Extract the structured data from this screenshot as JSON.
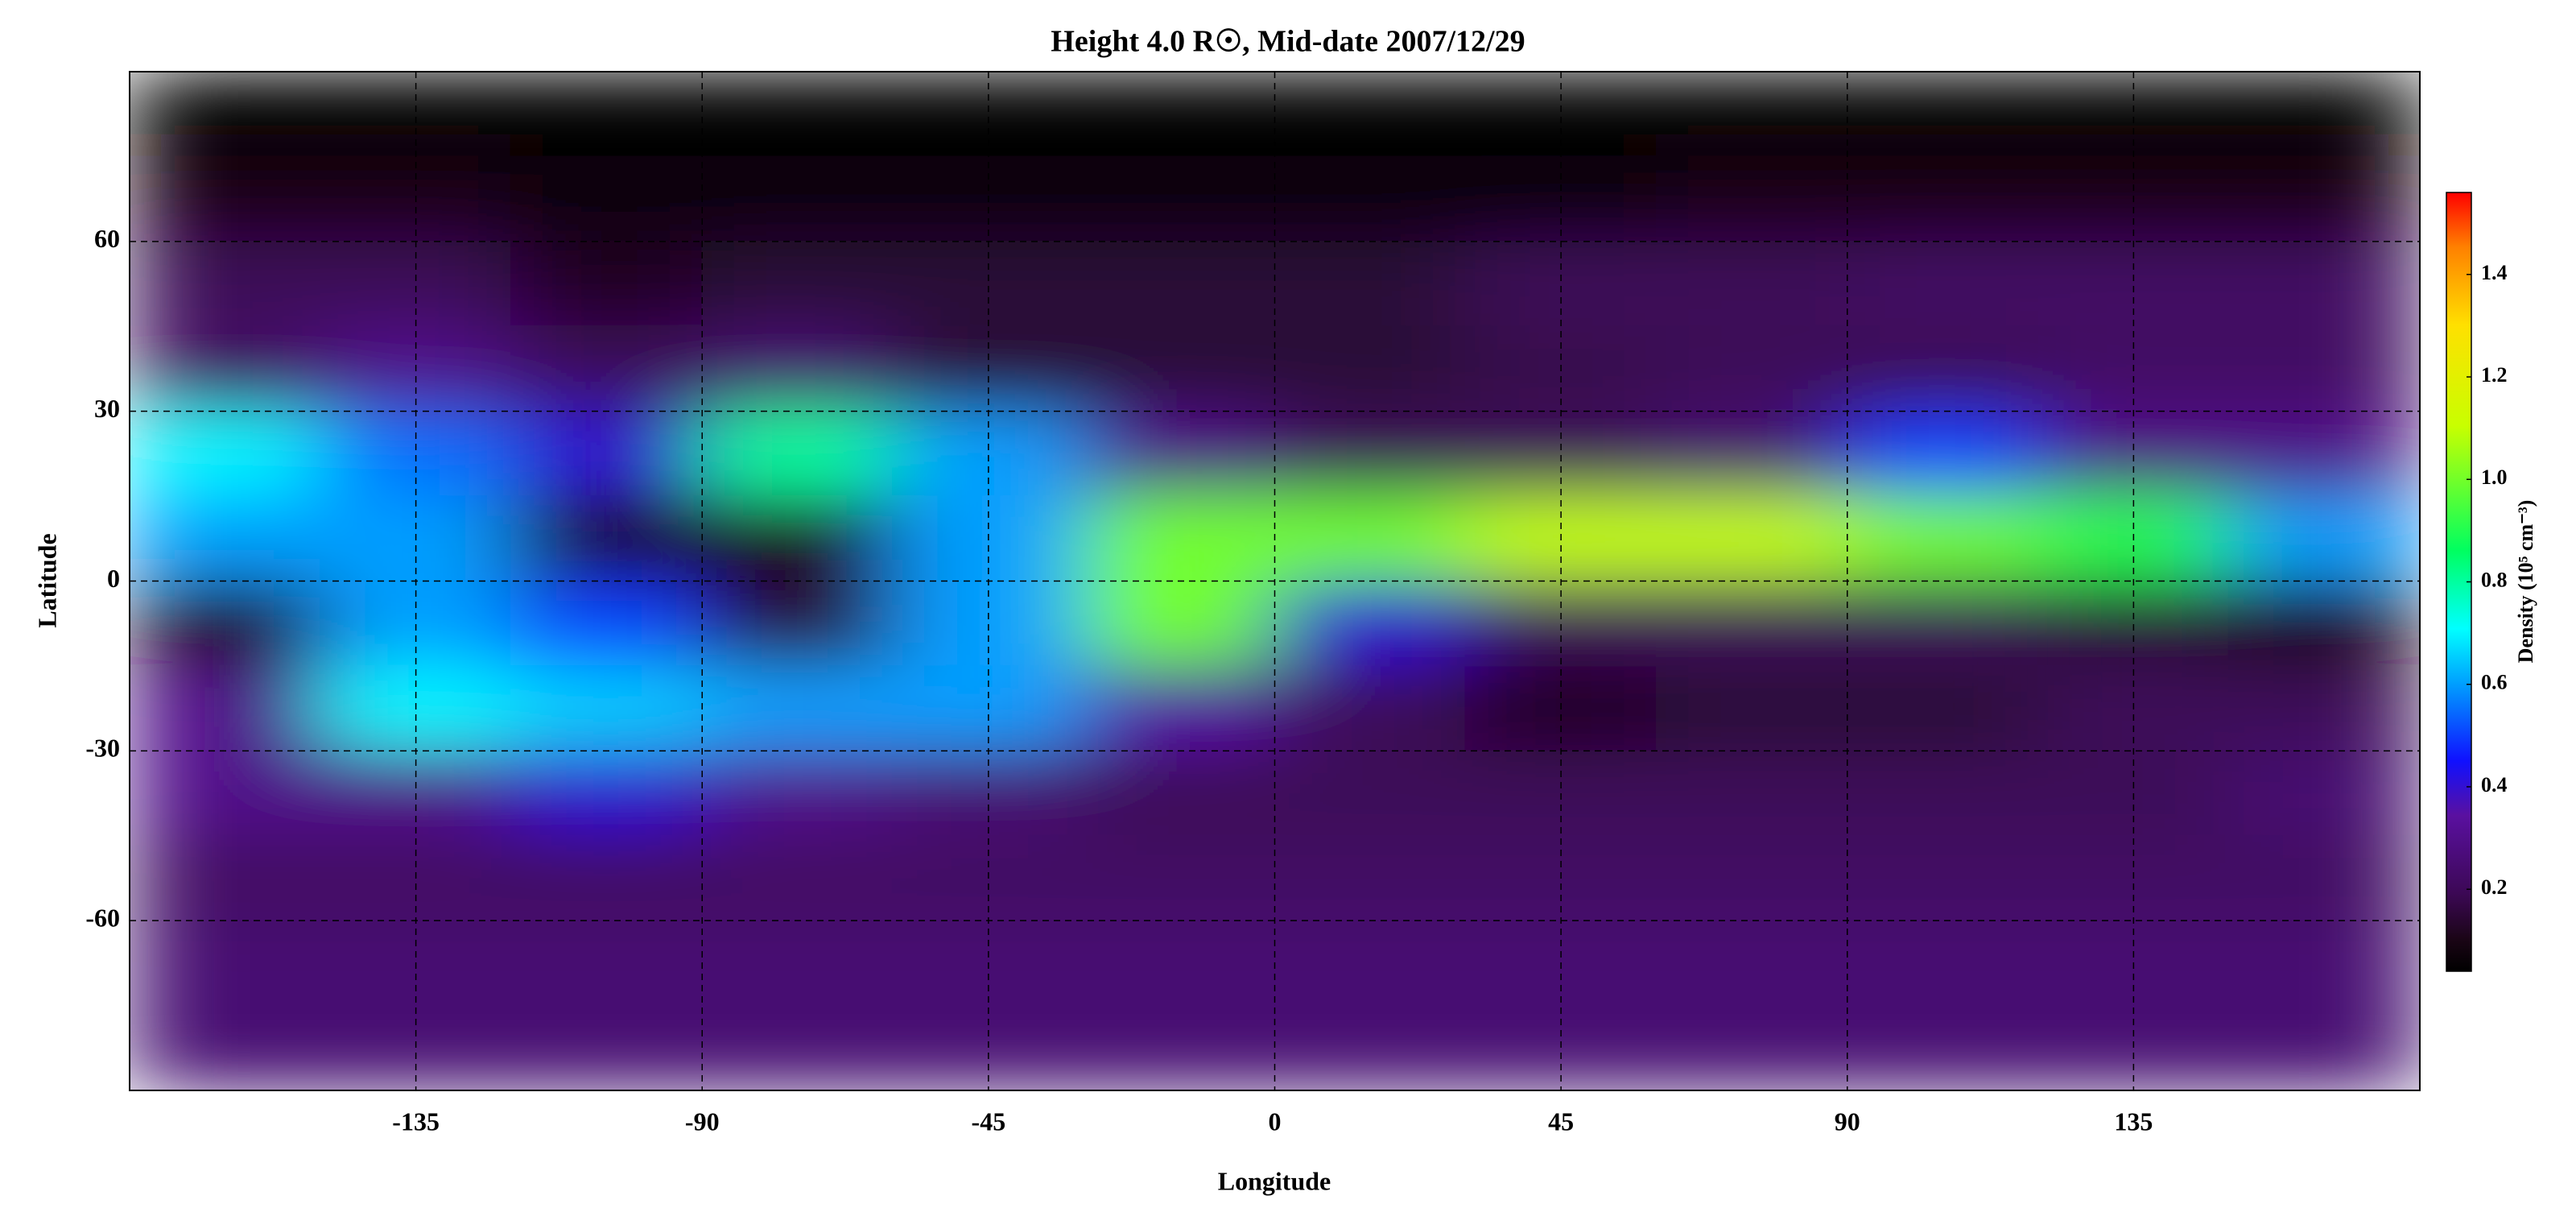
{
  "chart_data": {
    "type": "heatmap",
    "title": "Height 4.0 R☉, Mid-date 2007/12/29",
    "x_label": "Longitude",
    "y_label": "Latitude",
    "colorbar_label": "Density (10⁵ cm⁻³)",
    "x": [
      -165,
      -135,
      -105,
      -75,
      -45,
      -15,
      15,
      45,
      75,
      105,
      135,
      165
    ],
    "y": [
      82.5,
      67.5,
      52.5,
      37.5,
      22.5,
      7.5,
      -7.5,
      -22.5,
      -37.5,
      -52.5,
      -67.5,
      -82.5
    ],
    "z": [
      [
        0.05,
        0.05,
        0.05,
        0.05,
        0.05,
        0.05,
        0.05,
        0.05,
        0.05,
        0.05,
        0.05,
        0.05
      ],
      [
        0.1,
        0.1,
        0.08,
        0.08,
        0.08,
        0.08,
        0.08,
        0.08,
        0.1,
        0.1,
        0.1,
        0.1
      ],
      [
        0.2,
        0.2,
        0.12,
        0.15,
        0.15,
        0.15,
        0.15,
        0.2,
        0.2,
        0.22,
        0.22,
        0.22
      ],
      [
        0.22,
        0.3,
        0.2,
        0.25,
        0.15,
        0.15,
        0.15,
        0.18,
        0.2,
        0.2,
        0.22,
        0.22
      ],
      [
        0.7,
        0.55,
        0.4,
        0.8,
        0.6,
        0.3,
        0.2,
        0.2,
        0.25,
        0.5,
        0.3,
        0.3
      ],
      [
        0.6,
        0.6,
        0.1,
        0.1,
        0.6,
        1.0,
        1.0,
        1.1,
        1.1,
        1.0,
        0.9,
        0.6
      ],
      [
        0.1,
        0.6,
        0.5,
        0.15,
        0.6,
        1.0,
        0.4,
        0.2,
        0.2,
        0.2,
        0.15,
        0.1
      ],
      [
        0.3,
        0.7,
        0.65,
        0.6,
        0.6,
        0.35,
        0.2,
        0.12,
        0.15,
        0.15,
        0.2,
        0.2
      ],
      [
        0.3,
        0.3,
        0.4,
        0.3,
        0.25,
        0.2,
        0.2,
        0.2,
        0.2,
        0.2,
        0.2,
        0.25
      ],
      [
        0.22,
        0.22,
        0.22,
        0.22,
        0.22,
        0.22,
        0.22,
        0.22,
        0.22,
        0.22,
        0.22,
        0.22
      ],
      [
        0.25,
        0.25,
        0.25,
        0.25,
        0.25,
        0.25,
        0.25,
        0.25,
        0.25,
        0.25,
        0.25,
        0.25
      ],
      [
        0.25,
        0.25,
        0.25,
        0.25,
        0.25,
        0.25,
        0.25,
        0.25,
        0.25,
        0.25,
        0.25,
        0.25
      ]
    ],
    "xlim": [
      -180,
      180
    ],
    "ylim": [
      -90,
      90
    ],
    "xticks": [
      -135,
      -90,
      -45,
      0,
      45,
      90,
      135
    ],
    "yticks": [
      -60,
      -30,
      0,
      30,
      60
    ],
    "zlim": [
      0.04,
      1.56
    ],
    "zticks": [
      0.2,
      0.4,
      0.6,
      0.8,
      {
        "value": 1,
        "label": "1.0"
      },
      1.2,
      1.4
    ],
    "grid": true
  }
}
